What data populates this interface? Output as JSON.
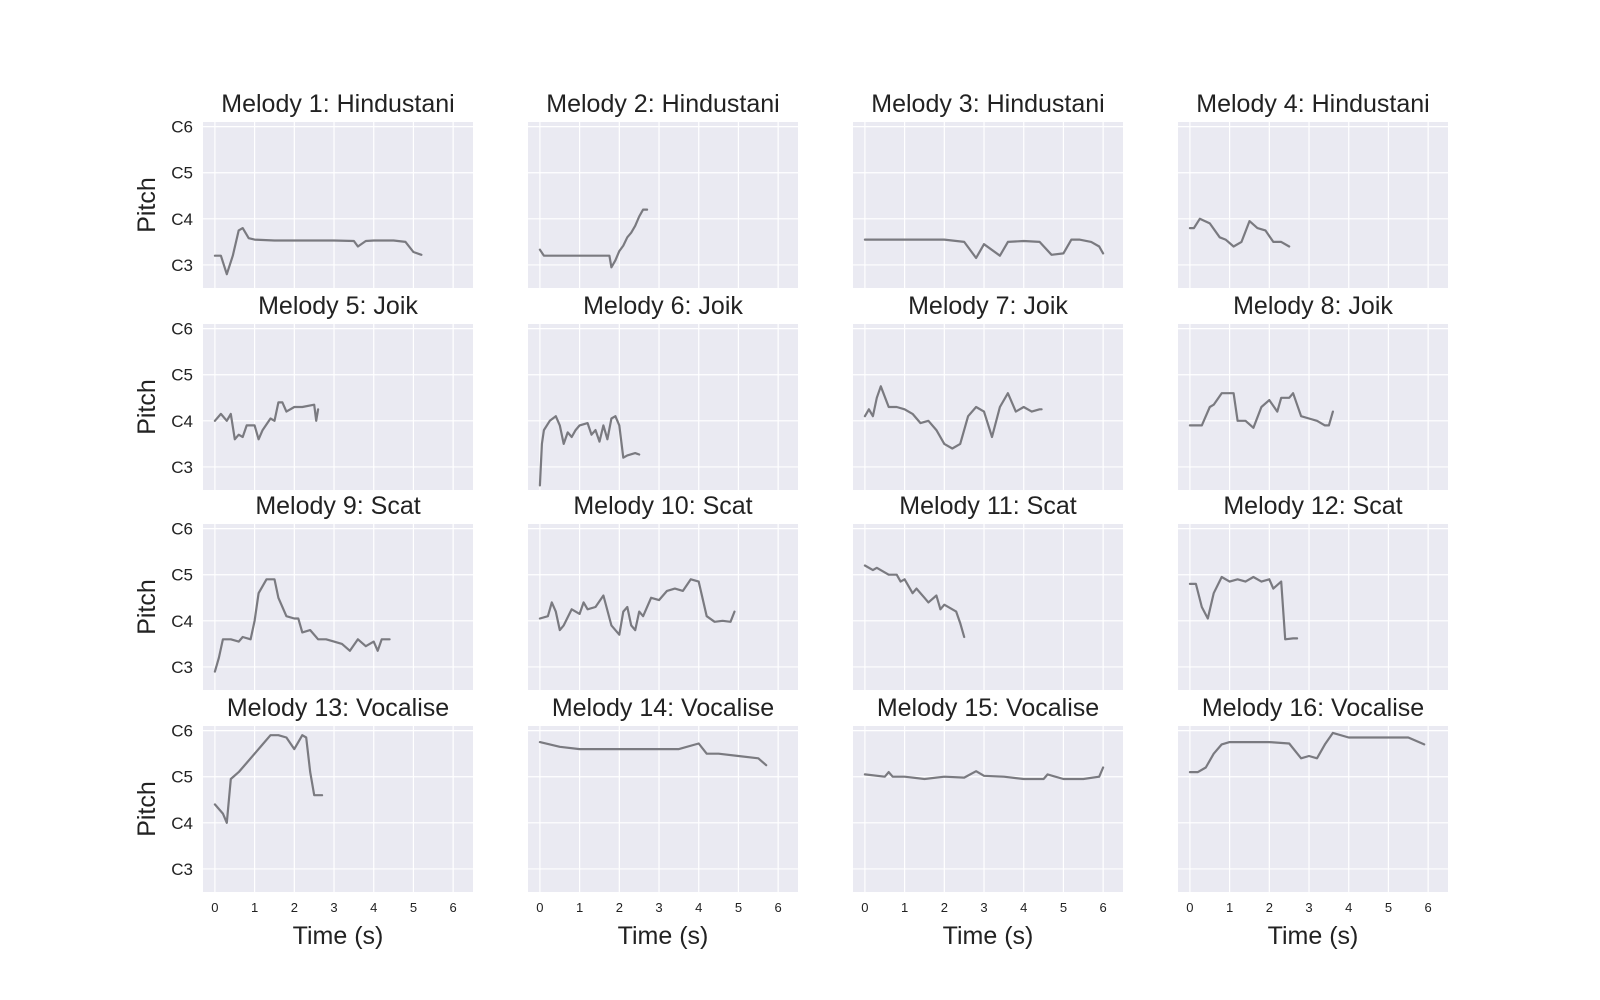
{
  "figure": {
    "xlabel": "Time (s)",
    "ylabel": "Pitch",
    "line_color": "#7a7a80",
    "panel_background": "#eaeaf2",
    "grid_color": "#ffffff"
  },
  "chart_data": [
    {
      "type": "line",
      "title": "Melody 1: Hindustani",
      "xlabel": "",
      "ylabel": "Pitch",
      "xlim": [
        -0.3,
        6.5
      ],
      "ylim": [
        "C2 (approx. -0.9 octave below C3)",
        "C6"
      ],
      "y_unit": "octaves above C3",
      "y_range": [
        -0.5,
        3.1
      ],
      "xticks": [
        "0",
        "1",
        "2",
        "3",
        "4",
        "5",
        "6"
      ],
      "yticks": [
        "C3",
        "C4",
        "C5",
        "C6"
      ],
      "grid": true,
      "x": [
        0,
        0.15,
        0.3,
        0.45,
        0.6,
        0.7,
        0.85,
        1.0,
        1.5,
        2.0,
        2.5,
        3.0,
        3.5,
        3.6,
        3.8,
        4.0,
        4.5,
        4.8,
        5.0,
        5.2
      ],
      "y": [
        0.2,
        0.2,
        -0.2,
        0.2,
        0.75,
        0.8,
        0.58,
        0.55,
        0.53,
        0.53,
        0.53,
        0.53,
        0.52,
        0.4,
        0.52,
        0.53,
        0.53,
        0.5,
        0.28,
        0.22
      ]
    },
    {
      "type": "line",
      "title": "Melody 2: Hindustani",
      "xlabel": "",
      "ylabel": "",
      "xlim": [
        -0.3,
        6.5
      ],
      "y_unit": "octaves above C3",
      "y_range": [
        -0.5,
        3.1
      ],
      "xticks": [
        "0",
        "1",
        "2",
        "3",
        "4",
        "5",
        "6"
      ],
      "yticks": [
        "C3",
        "C4",
        "C5",
        "C6"
      ],
      "grid": true,
      "x": [
        0,
        0.1,
        0.5,
        1.0,
        1.3,
        1.5,
        1.75,
        1.8,
        1.9,
        2.0,
        2.1,
        2.2,
        2.3,
        2.4,
        2.5,
        2.6,
        2.7
      ],
      "y": [
        0.33,
        0.2,
        0.2,
        0.2,
        0.2,
        0.2,
        0.2,
        -0.05,
        0.1,
        0.3,
        0.42,
        0.6,
        0.7,
        0.85,
        1.05,
        1.2,
        1.2
      ]
    },
    {
      "type": "line",
      "title": "Melody 3: Hindustani",
      "xlabel": "",
      "ylabel": "",
      "xlim": [
        -0.3,
        6.5
      ],
      "y_unit": "octaves above C3",
      "y_range": [
        -0.5,
        3.1
      ],
      "xticks": [
        "0",
        "1",
        "2",
        "3",
        "4",
        "5",
        "6"
      ],
      "yticks": [
        "C3",
        "C4",
        "C5",
        "C6"
      ],
      "grid": true,
      "x": [
        0,
        1.0,
        2.0,
        2.5,
        2.8,
        3.0,
        3.4,
        3.6,
        4.0,
        4.4,
        4.7,
        5.0,
        5.2,
        5.4,
        5.7,
        5.9,
        6.0
      ],
      "y": [
        0.55,
        0.55,
        0.55,
        0.5,
        0.15,
        0.45,
        0.2,
        0.5,
        0.52,
        0.5,
        0.22,
        0.25,
        0.55,
        0.55,
        0.5,
        0.4,
        0.25
      ]
    },
    {
      "type": "line",
      "title": "Melody 4: Hindustani",
      "xlabel": "",
      "ylabel": "",
      "xlim": [
        -0.3,
        6.5
      ],
      "y_unit": "octaves above C3",
      "y_range": [
        -0.5,
        3.1
      ],
      "xticks": [
        "0",
        "1",
        "2",
        "3",
        "4",
        "5",
        "6"
      ],
      "yticks": [
        "C3",
        "C4",
        "C5",
        "C6"
      ],
      "grid": true,
      "x": [
        0,
        0.1,
        0.25,
        0.5,
        0.75,
        0.9,
        1.1,
        1.3,
        1.5,
        1.7,
        1.9,
        2.1,
        2.3,
        2.5
      ],
      "y": [
        0.8,
        0.8,
        1.0,
        0.9,
        0.6,
        0.55,
        0.4,
        0.5,
        0.95,
        0.8,
        0.75,
        0.5,
        0.5,
        0.4
      ]
    },
    {
      "type": "line",
      "title": "Melody 5: Joik",
      "xlabel": "",
      "ylabel": "Pitch",
      "xlim": [
        -0.3,
        6.5
      ],
      "y_unit": "octaves above C3",
      "y_range": [
        -0.5,
        3.1
      ],
      "xticks": [
        "0",
        "1",
        "2",
        "3",
        "4",
        "5",
        "6"
      ],
      "yticks": [
        "C3",
        "C4",
        "C5",
        "C6"
      ],
      "grid": true,
      "x": [
        0,
        0.15,
        0.3,
        0.4,
        0.5,
        0.6,
        0.7,
        0.8,
        0.9,
        1.0,
        1.1,
        1.2,
        1.4,
        1.5,
        1.6,
        1.7,
        1.8,
        2.0,
        2.2,
        2.5,
        2.55,
        2.6
      ],
      "y": [
        1.0,
        1.15,
        1.0,
        1.15,
        0.6,
        0.7,
        0.65,
        0.9,
        0.9,
        0.9,
        0.6,
        0.8,
        1.05,
        1.0,
        1.4,
        1.4,
        1.2,
        1.3,
        1.3,
        1.35,
        1.0,
        1.25
      ]
    },
    {
      "type": "line",
      "title": "Melody 6: Joik",
      "xlabel": "",
      "ylabel": "",
      "xlim": [
        -0.3,
        6.5
      ],
      "y_unit": "octaves above C3",
      "y_range": [
        -0.5,
        3.1
      ],
      "xticks": [
        "0",
        "1",
        "2",
        "3",
        "4",
        "5",
        "6"
      ],
      "yticks": [
        "C3",
        "C4",
        "C5",
        "C6"
      ],
      "grid": true,
      "x": [
        0,
        0.05,
        0.1,
        0.25,
        0.4,
        0.5,
        0.6,
        0.7,
        0.8,
        0.9,
        1.0,
        1.2,
        1.3,
        1.4,
        1.5,
        1.6,
        1.7,
        1.8,
        1.9,
        2.0,
        2.1,
        2.2,
        2.4,
        2.5
      ],
      "y": [
        -0.4,
        0.5,
        0.8,
        1.0,
        1.1,
        0.9,
        0.5,
        0.75,
        0.65,
        0.8,
        0.9,
        0.95,
        0.7,
        0.8,
        0.55,
        0.9,
        0.6,
        1.05,
        1.1,
        0.9,
        0.2,
        0.25,
        0.3,
        0.27
      ]
    },
    {
      "type": "line",
      "title": "Melody 7: Joik",
      "xlabel": "",
      "ylabel": "",
      "xlim": [
        -0.3,
        6.5
      ],
      "y_unit": "octaves above C3",
      "y_range": [
        -0.5,
        3.1
      ],
      "xticks": [
        "0",
        "1",
        "2",
        "3",
        "4",
        "5",
        "6"
      ],
      "yticks": [
        "C3",
        "C4",
        "C5",
        "C6"
      ],
      "grid": true,
      "x": [
        0,
        0.1,
        0.2,
        0.3,
        0.4,
        0.6,
        0.8,
        1.0,
        1.2,
        1.4,
        1.6,
        1.8,
        2.0,
        2.2,
        2.4,
        2.6,
        2.8,
        3.0,
        3.2,
        3.4,
        3.6,
        3.8,
        4.0,
        4.2,
        4.4,
        4.45
      ],
      "y": [
        1.1,
        1.25,
        1.1,
        1.5,
        1.75,
        1.3,
        1.3,
        1.25,
        1.15,
        0.95,
        1.0,
        0.8,
        0.5,
        0.4,
        0.5,
        1.1,
        1.3,
        1.2,
        0.65,
        1.3,
        1.6,
        1.2,
        1.3,
        1.2,
        1.25,
        1.25
      ]
    },
    {
      "type": "line",
      "title": "Melody 8: Joik",
      "xlabel": "",
      "ylabel": "",
      "xlim": [
        -0.3,
        6.5
      ],
      "y_unit": "octaves above C3",
      "y_range": [
        -0.5,
        3.1
      ],
      "xticks": [
        "0",
        "1",
        "2",
        "3",
        "4",
        "5",
        "6"
      ],
      "yticks": [
        "C3",
        "C4",
        "C5",
        "C6"
      ],
      "grid": true,
      "x": [
        0,
        0.3,
        0.4,
        0.5,
        0.6,
        0.8,
        1.0,
        1.1,
        1.2,
        1.4,
        1.6,
        1.8,
        2.0,
        2.2,
        2.3,
        2.5,
        2.6,
        2.8,
        3.0,
        3.2,
        3.4,
        3.5,
        3.6
      ],
      "y": [
        0.9,
        0.9,
        1.1,
        1.3,
        1.35,
        1.6,
        1.6,
        1.6,
        1.0,
        1.0,
        0.85,
        1.3,
        1.45,
        1.2,
        1.5,
        1.5,
        1.6,
        1.1,
        1.05,
        1.0,
        0.9,
        0.9,
        1.2
      ]
    },
    {
      "type": "line",
      "title": "Melody 9: Scat",
      "xlabel": "",
      "ylabel": "Pitch",
      "xlim": [
        -0.3,
        6.5
      ],
      "y_unit": "octaves above C3",
      "y_range": [
        -0.5,
        3.1
      ],
      "xticks": [
        "0",
        "1",
        "2",
        "3",
        "4",
        "5",
        "6"
      ],
      "yticks": [
        "C3",
        "C4",
        "C5",
        "C6"
      ],
      "grid": true,
      "x": [
        0,
        0.1,
        0.2,
        0.4,
        0.6,
        0.7,
        0.9,
        1.0,
        1.1,
        1.3,
        1.5,
        1.6,
        1.8,
        2.0,
        2.1,
        2.2,
        2.4,
        2.6,
        2.8,
        3.0,
        3.2,
        3.4,
        3.6,
        3.8,
        4.0,
        4.1,
        4.2,
        4.4
      ],
      "y": [
        -0.1,
        0.2,
        0.6,
        0.6,
        0.55,
        0.65,
        0.6,
        1.0,
        1.6,
        1.9,
        1.9,
        1.5,
        1.1,
        1.05,
        1.05,
        0.75,
        0.8,
        0.6,
        0.6,
        0.55,
        0.5,
        0.35,
        0.6,
        0.45,
        0.55,
        0.35,
        0.6,
        0.6
      ]
    },
    {
      "type": "line",
      "title": "Melody 10: Scat",
      "xlabel": "",
      "ylabel": "",
      "xlim": [
        -0.3,
        6.5
      ],
      "y_unit": "octaves above C3",
      "y_range": [
        -0.5,
        3.1
      ],
      "xticks": [
        "0",
        "1",
        "2",
        "3",
        "4",
        "5",
        "6"
      ],
      "yticks": [
        "C3",
        "C4",
        "C5",
        "C6"
      ],
      "grid": true,
      "x": [
        0,
        0.2,
        0.3,
        0.4,
        0.5,
        0.6,
        0.8,
        1.0,
        1.1,
        1.2,
        1.4,
        1.6,
        1.8,
        2.0,
        2.1,
        2.2,
        2.3,
        2.4,
        2.5,
        2.6,
        2.8,
        3.0,
        3.2,
        3.4,
        3.6,
        3.8,
        4.0,
        4.2,
        4.4,
        4.6,
        4.8,
        4.9
      ],
      "y": [
        1.05,
        1.1,
        1.4,
        1.2,
        0.8,
        0.9,
        1.25,
        1.15,
        1.4,
        1.25,
        1.3,
        1.55,
        0.9,
        0.7,
        1.2,
        1.3,
        0.9,
        0.8,
        1.2,
        1.1,
        1.5,
        1.45,
        1.65,
        1.7,
        1.65,
        1.9,
        1.85,
        1.1,
        0.98,
        1.0,
        0.98,
        1.2
      ]
    },
    {
      "type": "line",
      "title": "Melody 11: Scat",
      "xlabel": "",
      "ylabel": "",
      "xlim": [
        -0.3,
        6.5
      ],
      "y_unit": "octaves above C3",
      "y_range": [
        -0.5,
        3.1
      ],
      "xticks": [
        "0",
        "1",
        "2",
        "3",
        "4",
        "5",
        "6"
      ],
      "yticks": [
        "C3",
        "C4",
        "C5",
        "C6"
      ],
      "grid": true,
      "x": [
        0,
        0.2,
        0.3,
        0.5,
        0.6,
        0.8,
        0.9,
        1.0,
        1.2,
        1.3,
        1.5,
        1.6,
        1.8,
        1.9,
        2.0,
        2.2,
        2.3,
        2.4,
        2.5
      ],
      "y": [
        2.2,
        2.1,
        2.15,
        2.05,
        2.0,
        2.0,
        1.85,
        1.9,
        1.6,
        1.7,
        1.5,
        1.4,
        1.55,
        1.25,
        1.35,
        1.25,
        1.2,
        0.95,
        0.65
      ]
    },
    {
      "type": "line",
      "title": "Melody 12: Scat",
      "xlabel": "",
      "ylabel": "",
      "xlim": [
        -0.3,
        6.5
      ],
      "y_unit": "octaves above C3",
      "y_range": [
        -0.5,
        3.1
      ],
      "xticks": [
        "0",
        "1",
        "2",
        "3",
        "4",
        "5",
        "6"
      ],
      "yticks": [
        "C3",
        "C4",
        "C5",
        "C6"
      ],
      "grid": true,
      "x": [
        0,
        0.15,
        0.3,
        0.45,
        0.6,
        0.8,
        1.0,
        1.2,
        1.4,
        1.6,
        1.8,
        2.0,
        2.1,
        2.3,
        2.4,
        2.6,
        2.7
      ],
      "y": [
        1.8,
        1.8,
        1.3,
        1.05,
        1.6,
        1.95,
        1.85,
        1.9,
        1.85,
        1.95,
        1.85,
        1.9,
        1.7,
        1.85,
        0.6,
        0.62,
        0.62
      ]
    },
    {
      "type": "line",
      "title": "Melody 13: Vocalise",
      "xlabel": "Time (s)",
      "ylabel": "Pitch",
      "xlim": [
        -0.3,
        6.5
      ],
      "y_unit": "octaves above C3",
      "y_range": [
        -0.5,
        3.1
      ],
      "xticks": [
        "0",
        "1",
        "2",
        "3",
        "4",
        "5",
        "6"
      ],
      "yticks": [
        "C3",
        "C4",
        "C5",
        "C6"
      ],
      "grid": true,
      "x": [
        0,
        0.1,
        0.2,
        0.3,
        0.4,
        0.6,
        0.8,
        1.0,
        1.2,
        1.4,
        1.6,
        1.8,
        2.0,
        2.2,
        2.3,
        2.4,
        2.5,
        2.7
      ],
      "y": [
        1.4,
        1.3,
        1.2,
        1.0,
        1.95,
        2.1,
        2.3,
        2.5,
        2.7,
        2.9,
        2.9,
        2.85,
        2.6,
        2.9,
        2.85,
        2.1,
        1.6,
        1.6
      ]
    },
    {
      "type": "line",
      "title": "Melody 14: Vocalise",
      "xlabel": "Time (s)",
      "ylabel": "",
      "xlim": [
        -0.3,
        6.5
      ],
      "y_unit": "octaves above C3",
      "y_range": [
        -0.5,
        3.1
      ],
      "xticks": [
        "0",
        "1",
        "2",
        "3",
        "4",
        "5",
        "6"
      ],
      "yticks": [
        "C3",
        "C4",
        "C5",
        "C6"
      ],
      "grid": true,
      "x": [
        0,
        0.5,
        1.0,
        1.5,
        2.0,
        2.5,
        3.0,
        3.5,
        4.0,
        4.2,
        4.5,
        5.0,
        5.5,
        5.7
      ],
      "y": [
        2.75,
        2.65,
        2.6,
        2.6,
        2.6,
        2.6,
        2.6,
        2.6,
        2.72,
        2.5,
        2.5,
        2.45,
        2.4,
        2.25
      ]
    },
    {
      "type": "line",
      "title": "Melody 15: Vocalise",
      "xlabel": "Time (s)",
      "ylabel": "",
      "xlim": [
        -0.3,
        6.5
      ],
      "y_unit": "octaves above C3",
      "y_range": [
        -0.5,
        3.1
      ],
      "xticks": [
        "0",
        "1",
        "2",
        "3",
        "4",
        "5",
        "6"
      ],
      "yticks": [
        "C3",
        "C4",
        "C5",
        "C6"
      ],
      "grid": true,
      "x": [
        0,
        0.5,
        0.6,
        0.7,
        1.0,
        1.5,
        2.0,
        2.5,
        2.8,
        3.0,
        3.5,
        4.0,
        4.5,
        4.6,
        5.0,
        5.5,
        5.9,
        6.0
      ],
      "y": [
        2.05,
        2.0,
        2.1,
        2.0,
        2.0,
        1.95,
        2.0,
        1.98,
        2.12,
        2.02,
        2.0,
        1.95,
        1.95,
        2.05,
        1.95,
        1.95,
        2.0,
        2.2
      ]
    },
    {
      "type": "line",
      "title": "Melody 16: Vocalise",
      "xlabel": "Time (s)",
      "ylabel": "",
      "xlim": [
        -0.3,
        6.5
      ],
      "y_unit": "octaves above C3",
      "y_range": [
        -0.5,
        3.1
      ],
      "xticks": [
        "0",
        "1",
        "2",
        "3",
        "4",
        "5",
        "6"
      ],
      "yticks": [
        "C3",
        "C4",
        "C5",
        "C6"
      ],
      "grid": true,
      "x": [
        0,
        0.2,
        0.4,
        0.6,
        0.8,
        1.0,
        1.5,
        2.0,
        2.5,
        2.8,
        3.0,
        3.2,
        3.4,
        3.6,
        4.0,
        4.5,
        5.0,
        5.5,
        5.9
      ],
      "y": [
        2.1,
        2.1,
        2.2,
        2.5,
        2.7,
        2.75,
        2.75,
        2.75,
        2.72,
        2.4,
        2.45,
        2.4,
        2.7,
        2.95,
        2.85,
        2.85,
        2.85,
        2.85,
        2.7
      ]
    }
  ]
}
